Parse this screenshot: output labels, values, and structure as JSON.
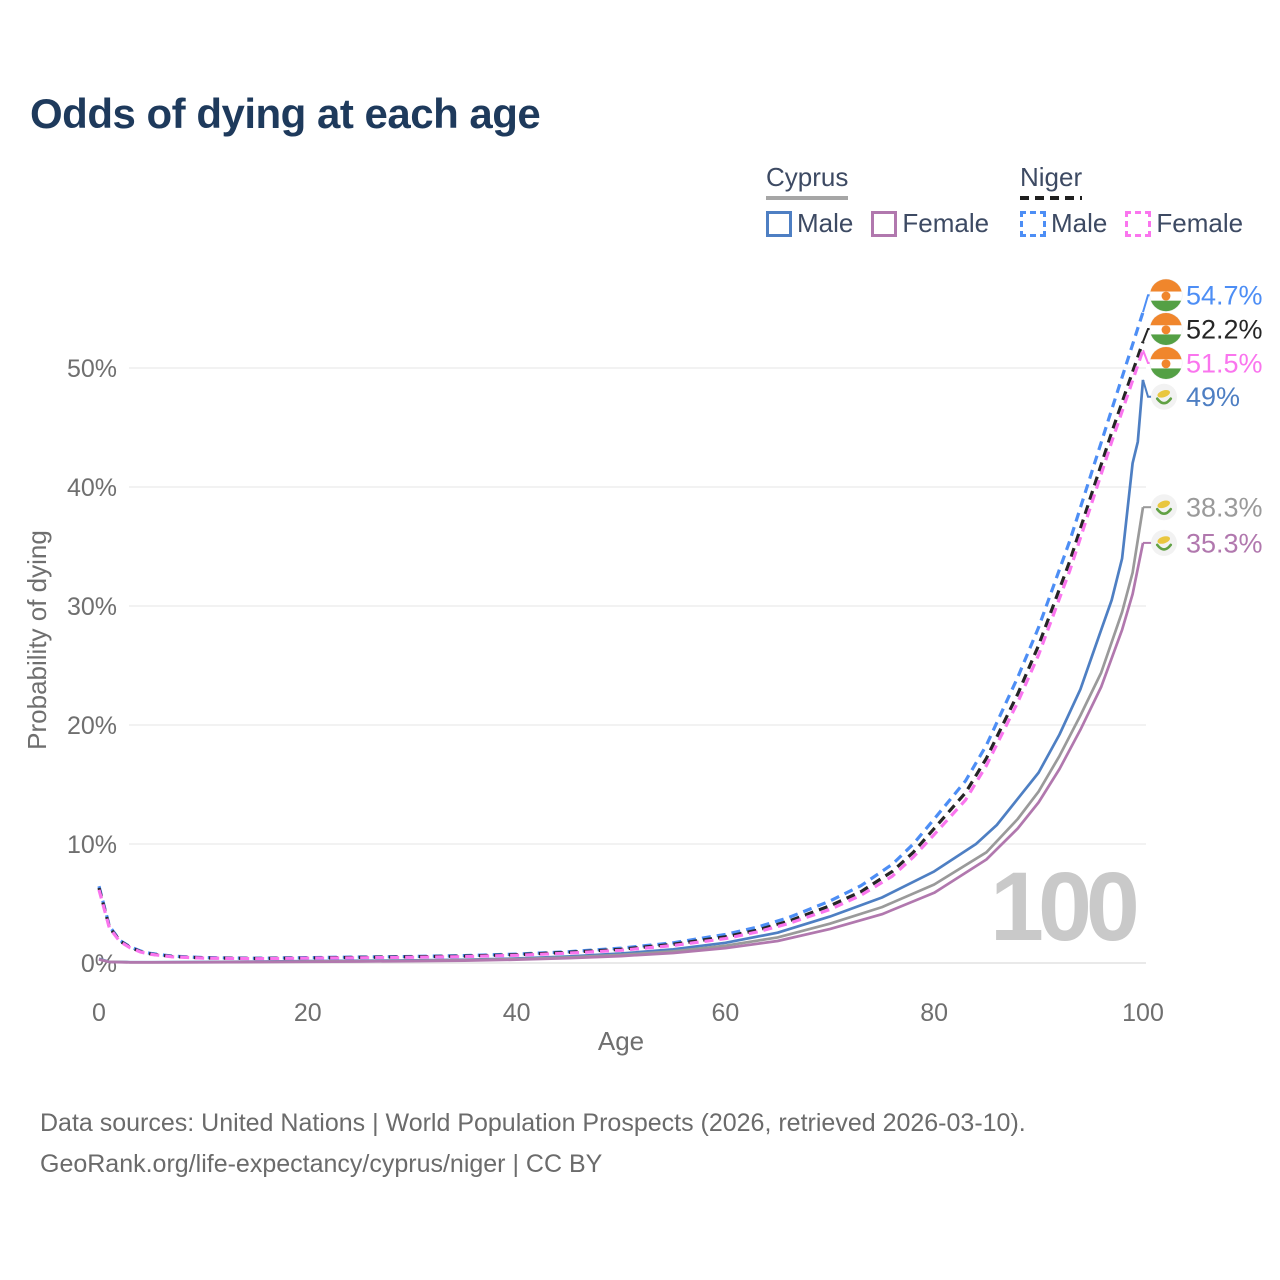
{
  "title": "Odds of dying at each age",
  "watermark": "100",
  "legend": {
    "groups": [
      {
        "label": "Cyprus",
        "line_style": "solid",
        "underline_color": "#a6a6a6",
        "items": [
          {
            "label": "Male",
            "color": "#4e7fc3"
          },
          {
            "label": "Female",
            "color": "#b178ae"
          }
        ]
      },
      {
        "label": "Niger",
        "line_style": "dashed",
        "underline_color": "#1f1f1f",
        "items": [
          {
            "label": "Male",
            "color": "#4d8ef5"
          },
          {
            "label": "Female",
            "color": "#fa75ee"
          }
        ]
      }
    ]
  },
  "footer": {
    "line1": "Data sources: United Nations | World Population Prospects (2026, retrieved 2026-03-10).",
    "line2": "GeoRank.org/life-expectancy/cyprus/niger | CC BY"
  },
  "chart_data": {
    "type": "line",
    "title": "Odds of dying at each age",
    "xlabel": "Age",
    "ylabel": "Probability of dying",
    "xlim": [
      0,
      100
    ],
    "ylim": [
      0,
      56
    ],
    "grid": "horizontal",
    "x_ticks": [
      0,
      20,
      40,
      60,
      80,
      100
    ],
    "x_tick_labels": [
      "0",
      "20",
      "40",
      "60",
      "80",
      "100"
    ],
    "y_ticks": [
      0,
      10,
      20,
      30,
      40,
      50
    ],
    "y_tick_labels": [
      "0%",
      "10%",
      "20%",
      "30%",
      "40%",
      "50%"
    ],
    "series": [
      {
        "id": "niger-male",
        "country": "Niger",
        "sex": "Male",
        "flag": "niger",
        "color": "#4d8ef5",
        "dash": "dashed",
        "end_value": 54.7,
        "end_label": "54.7%",
        "points": [
          [
            0,
            6.45
          ],
          [
            1,
            3.1
          ],
          [
            2,
            1.9
          ],
          [
            3,
            1.35
          ],
          [
            4,
            1.0
          ],
          [
            5,
            0.8
          ],
          [
            7,
            0.58
          ],
          [
            10,
            0.45
          ],
          [
            15,
            0.4
          ],
          [
            20,
            0.45
          ],
          [
            25,
            0.5
          ],
          [
            30,
            0.55
          ],
          [
            35,
            0.62
          ],
          [
            40,
            0.75
          ],
          [
            45,
            0.95
          ],
          [
            50,
            1.25
          ],
          [
            55,
            1.7
          ],
          [
            60,
            2.4
          ],
          [
            63,
            3.0
          ],
          [
            66,
            3.8
          ],
          [
            70,
            5.2
          ],
          [
            73,
            6.5
          ],
          [
            76,
            8.3
          ],
          [
            78,
            10.0
          ],
          [
            80,
            12.1
          ],
          [
            83,
            15.3
          ],
          [
            85,
            18.3
          ],
          [
            88,
            24.0
          ],
          [
            90,
            28.2
          ],
          [
            93,
            35.5
          ],
          [
            95,
            41.0
          ],
          [
            97,
            46.5
          ],
          [
            100,
            54.7
          ]
        ]
      },
      {
        "id": "niger-both",
        "country": "Niger",
        "sex": "Both sexes",
        "flag": "niger",
        "color": "#262626",
        "dash": "dashed",
        "end_value": 52.2,
        "end_label": "52.2%",
        "points": [
          [
            0,
            6.3
          ],
          [
            1,
            3.0
          ],
          [
            2,
            1.85
          ],
          [
            3,
            1.3
          ],
          [
            4,
            0.95
          ],
          [
            5,
            0.75
          ],
          [
            7,
            0.55
          ],
          [
            10,
            0.43
          ],
          [
            15,
            0.38
          ],
          [
            20,
            0.42
          ],
          [
            25,
            0.47
          ],
          [
            30,
            0.52
          ],
          [
            35,
            0.58
          ],
          [
            40,
            0.7
          ],
          [
            45,
            0.9
          ],
          [
            50,
            1.15
          ],
          [
            55,
            1.57
          ],
          [
            60,
            2.2
          ],
          [
            63,
            2.75
          ],
          [
            66,
            3.5
          ],
          [
            70,
            4.8
          ],
          [
            73,
            6.0
          ],
          [
            76,
            7.7
          ],
          [
            78,
            9.3
          ],
          [
            80,
            11.3
          ],
          [
            83,
            14.3
          ],
          [
            85,
            17.2
          ],
          [
            88,
            22.6
          ],
          [
            90,
            26.7
          ],
          [
            93,
            33.8
          ],
          [
            95,
            39.2
          ],
          [
            97,
            44.6
          ],
          [
            100,
            52.2
          ]
        ]
      },
      {
        "id": "niger-female",
        "country": "Niger",
        "sex": "Female",
        "flag": "niger",
        "color": "#fa75ee",
        "dash": "dashed",
        "end_value": 51.5,
        "end_label": "51.5%",
        "points": [
          [
            0,
            6.15
          ],
          [
            1,
            2.95
          ],
          [
            2,
            1.8
          ],
          [
            3,
            1.27
          ],
          [
            4,
            0.92
          ],
          [
            5,
            0.72
          ],
          [
            7,
            0.52
          ],
          [
            10,
            0.41
          ],
          [
            15,
            0.36
          ],
          [
            20,
            0.4
          ],
          [
            25,
            0.44
          ],
          [
            30,
            0.48
          ],
          [
            35,
            0.54
          ],
          [
            40,
            0.65
          ],
          [
            45,
            0.83
          ],
          [
            50,
            1.07
          ],
          [
            55,
            1.47
          ],
          [
            60,
            2.05
          ],
          [
            63,
            2.6
          ],
          [
            66,
            3.3
          ],
          [
            70,
            4.5
          ],
          [
            73,
            5.7
          ],
          [
            76,
            7.3
          ],
          [
            78,
            8.9
          ],
          [
            80,
            10.8
          ],
          [
            83,
            13.7
          ],
          [
            85,
            16.6
          ],
          [
            88,
            21.9
          ],
          [
            90,
            25.9
          ],
          [
            93,
            33.0
          ],
          [
            95,
            38.4
          ],
          [
            97,
            43.8
          ],
          [
            100,
            51.5
          ]
        ]
      },
      {
        "id": "cyprus-male",
        "country": "Cyprus",
        "sex": "Male",
        "flag": "cyprus",
        "color": "#4e7fc3",
        "dash": "solid",
        "end_value": 49,
        "end_label": "49%",
        "points": [
          [
            0,
            0.35
          ],
          [
            1,
            0.1
          ],
          [
            3,
            0.07
          ],
          [
            5,
            0.07
          ],
          [
            10,
            0.08
          ],
          [
            15,
            0.12
          ],
          [
            20,
            0.16
          ],
          [
            25,
            0.19
          ],
          [
            30,
            0.22
          ],
          [
            35,
            0.28
          ],
          [
            40,
            0.38
          ],
          [
            45,
            0.55
          ],
          [
            50,
            0.8
          ],
          [
            55,
            1.15
          ],
          [
            60,
            1.7
          ],
          [
            65,
            2.55
          ],
          [
            70,
            3.9
          ],
          [
            75,
            5.5
          ],
          [
            80,
            7.7
          ],
          [
            84,
            10.0
          ],
          [
            86,
            11.6
          ],
          [
            88,
            13.8
          ],
          [
            90,
            16.0
          ],
          [
            92,
            19.2
          ],
          [
            94,
            23.0
          ],
          [
            95,
            25.5
          ],
          [
            96,
            28.0
          ],
          [
            97,
            30.5
          ],
          [
            98,
            34.0
          ],
          [
            99,
            42.0
          ],
          [
            99.5,
            43.8
          ],
          [
            100,
            49.0
          ]
        ]
      },
      {
        "id": "cyprus-both",
        "country": "Cyprus",
        "sex": "Both sexes",
        "flag": "cyprus",
        "color": "#9a9a9a",
        "dash": "solid",
        "end_value": 38.3,
        "end_label": "38.3%",
        "points": [
          [
            0,
            0.32
          ],
          [
            1,
            0.09
          ],
          [
            3,
            0.06
          ],
          [
            5,
            0.06
          ],
          [
            10,
            0.07
          ],
          [
            15,
            0.1
          ],
          [
            20,
            0.13
          ],
          [
            25,
            0.16
          ],
          [
            30,
            0.19
          ],
          [
            35,
            0.24
          ],
          [
            40,
            0.33
          ],
          [
            45,
            0.47
          ],
          [
            50,
            0.68
          ],
          [
            55,
            0.98
          ],
          [
            60,
            1.45
          ],
          [
            65,
            2.15
          ],
          [
            70,
            3.3
          ],
          [
            75,
            4.7
          ],
          [
            80,
            6.6
          ],
          [
            85,
            9.3
          ],
          [
            88,
            12.1
          ],
          [
            90,
            14.4
          ],
          [
            92,
            17.4
          ],
          [
            94,
            20.8
          ],
          [
            96,
            24.4
          ],
          [
            98,
            29.5
          ],
          [
            99,
            32.8
          ],
          [
            100,
            38.3
          ]
        ]
      },
      {
        "id": "cyprus-female",
        "country": "Cyprus",
        "sex": "Female",
        "flag": "cyprus",
        "color": "#b178ae",
        "dash": "solid",
        "end_value": 35.3,
        "end_label": "35.3%",
        "points": [
          [
            0,
            0.3
          ],
          [
            1,
            0.08
          ],
          [
            3,
            0.05
          ],
          [
            5,
            0.05
          ],
          [
            10,
            0.06
          ],
          [
            15,
            0.08
          ],
          [
            20,
            0.1
          ],
          [
            25,
            0.13
          ],
          [
            30,
            0.16
          ],
          [
            35,
            0.2
          ],
          [
            40,
            0.28
          ],
          [
            45,
            0.4
          ],
          [
            50,
            0.58
          ],
          [
            55,
            0.84
          ],
          [
            60,
            1.25
          ],
          [
            65,
            1.85
          ],
          [
            70,
            2.85
          ],
          [
            75,
            4.1
          ],
          [
            80,
            5.9
          ],
          [
            85,
            8.7
          ],
          [
            88,
            11.3
          ],
          [
            90,
            13.5
          ],
          [
            92,
            16.3
          ],
          [
            94,
            19.6
          ],
          [
            96,
            23.2
          ],
          [
            98,
            28.0
          ],
          [
            99,
            31.0
          ],
          [
            100,
            35.3
          ]
        ]
      }
    ]
  }
}
